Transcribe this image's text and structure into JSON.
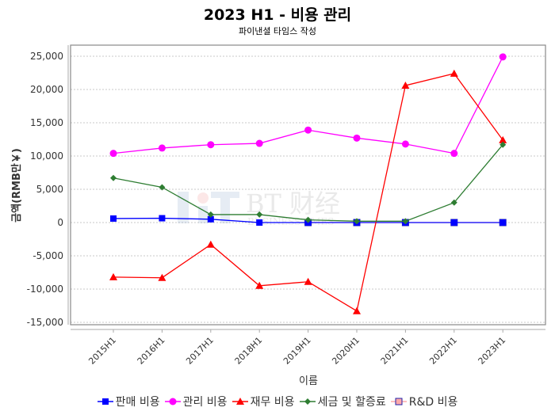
{
  "header": {
    "title": "2023 H1 - 비용 관리",
    "subtitle": "파이낸셜 타임스 작성"
  },
  "watermark": "BT财经 BUSINESSTIMES",
  "chart_data": {
    "type": "line",
    "title": "2023 H1 - 비용 관리",
    "subtitle": "파이낸셜 타임스 작성",
    "xlabel": "이름",
    "ylabel": "금액(RMB만￥)",
    "ylim": [
      -15000,
      25000
    ],
    "yticks": [
      -15000,
      -10000,
      -5000,
      0,
      5000,
      10000,
      15000,
      20000,
      25000
    ],
    "ytick_labels": [
      "-15,000",
      "-10,000",
      "-5,000",
      "0",
      "5,000",
      "10,000",
      "15,000",
      "20,000",
      "25,000"
    ],
    "grid": true,
    "legend_position": "bottom",
    "categories": [
      "2015H1",
      "2016H1",
      "2017H1",
      "2018H1",
      "2019H1",
      "2020H1",
      "2021H1",
      "2022H1",
      "2023H1"
    ],
    "series": [
      {
        "name": "판매 비용",
        "color": "#0000ff",
        "marker": "square",
        "values": [
          600,
          650,
          500,
          0,
          0,
          0,
          0,
          0,
          0
        ]
      },
      {
        "name": "관리 비용",
        "color": "#ff00ff",
        "marker": "circle",
        "values": [
          10400,
          11200,
          11700,
          11900,
          13900,
          12700,
          11800,
          10400,
          24900
        ]
      },
      {
        "name": "재무 비용",
        "color": "#ff0000",
        "marker": "triangle",
        "values": [
          -8200,
          -8300,
          -3300,
          -9500,
          -8900,
          -13300,
          20600,
          22400,
          12400
        ]
      },
      {
        "name": "세금 및 할증료",
        "color": "#2e7d32",
        "marker": "diamond",
        "values": [
          6700,
          5300,
          1200,
          1200,
          400,
          200,
          200,
          3000,
          11700
        ]
      },
      {
        "name": "R&D 비용",
        "color": "#ffaaaa",
        "marker": "square",
        "values": [
          null,
          null,
          null,
          null,
          0,
          0,
          0,
          0,
          0
        ]
      }
    ]
  }
}
